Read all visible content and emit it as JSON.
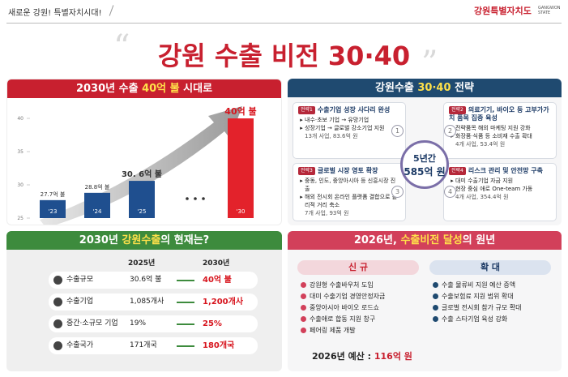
{
  "header": {
    "slogan": "새로운 강원! 특별자치시대!",
    "logo": "강원특별자치도",
    "logo_en": "GANGWON STATE"
  },
  "title": "강원 수출 비전 30·40",
  "chart_panel": {
    "title": [
      "2030년 수출 ",
      "40억 불",
      " 시대로"
    ]
  },
  "chart_data": {
    "type": "bar",
    "categories": [
      "'23",
      "'24",
      "'25",
      "'30"
    ],
    "values": [
      27.7,
      28.8,
      30.6,
      40
    ],
    "value_labels": [
      "27.7억 불",
      "28.8억 불",
      "30. 6억 불",
      "40억 불"
    ],
    "colors": [
      "#1f4f8f",
      "#1f4f8f",
      "#1f4f8f",
      "#e3222b"
    ],
    "ylim": [
      25,
      40
    ],
    "yticks": [
      25,
      30,
      35,
      40
    ]
  },
  "strategy": {
    "title": [
      "강원수출 ",
      "30·40",
      " 전략"
    ],
    "center": [
      "5년간",
      "585억 원"
    ],
    "items": [
      {
        "tag": "전략1",
        "number": "1",
        "title": "수출기업 성장 사다리 완성",
        "bullets": [
          "내수·초보 기업 → 유망기업",
          "성장기업 → 글로벌 강소기업 지원"
        ],
        "summary": "13개 사업, 83.6억 원"
      },
      {
        "tag": "전략2",
        "number": "2",
        "title": "의료기기, 바이오 등 고부가가치 품목 집중 육성",
        "bullets": [
          "전략품목 해외 마케팅 지원 강화",
          "화장품·식품 등 소비재 수출 확대"
        ],
        "summary": "4개 사업, 53.4억 원"
      },
      {
        "tag": "전략3",
        "number": "3",
        "title": "글로벌 시장 영토 확장",
        "bullets": [
          "중동, 인도, 중앙아시아 등 신흥시장 진출",
          "해외 전시회 온라인 플랫폼 결합으로 물리적 거리 축소"
        ],
        "summary": "7개 사업, 93억 원"
      },
      {
        "tag": "전략4",
        "number": "4",
        "title": "리스크 관리 및 안전망 구축",
        "bullets": [
          "대미 수출기업 자금 지원",
          "현장 중심 애로 One-team 가동"
        ],
        "summary": "4개 사업, 354.4억 원"
      }
    ]
  },
  "status": {
    "title": [
      "2030년 ",
      "강원수출",
      "의 현재는?"
    ],
    "columns": [
      "2025년",
      "2030년"
    ],
    "rows": [
      [
        "수출규모",
        "30.6억 불",
        "40억 불"
      ],
      [
        "수출기업",
        "1,085개사",
        "1,200개사"
      ],
      [
        "중간·소규모 기업",
        "19%",
        "25%"
      ],
      [
        "수출국가",
        "171개국",
        "180개국"
      ]
    ]
  },
  "plan": {
    "title": [
      "2026년, ",
      "수출비전 달성",
      "의 원년"
    ],
    "new": {
      "label": "신 규",
      "items": [
        "강원형 수출바우처 도입",
        "대미 수출기업 경영안정자금",
        "중앙아시아 바이오 로드쇼",
        "수출애로 합동 지원 창구",
        "페어링 제품 개발"
      ]
    },
    "expand": {
      "label": "확 대",
      "items": [
        "수출 물류비 지원 예산 증액",
        "수출보험료 지원 범위 확대",
        "글로벌 전시회 참가 규모 확대",
        "수출 스타기업 육성 강화"
      ]
    },
    "budget": [
      "2026년 예산 : ",
      "116억 원"
    ]
  }
}
